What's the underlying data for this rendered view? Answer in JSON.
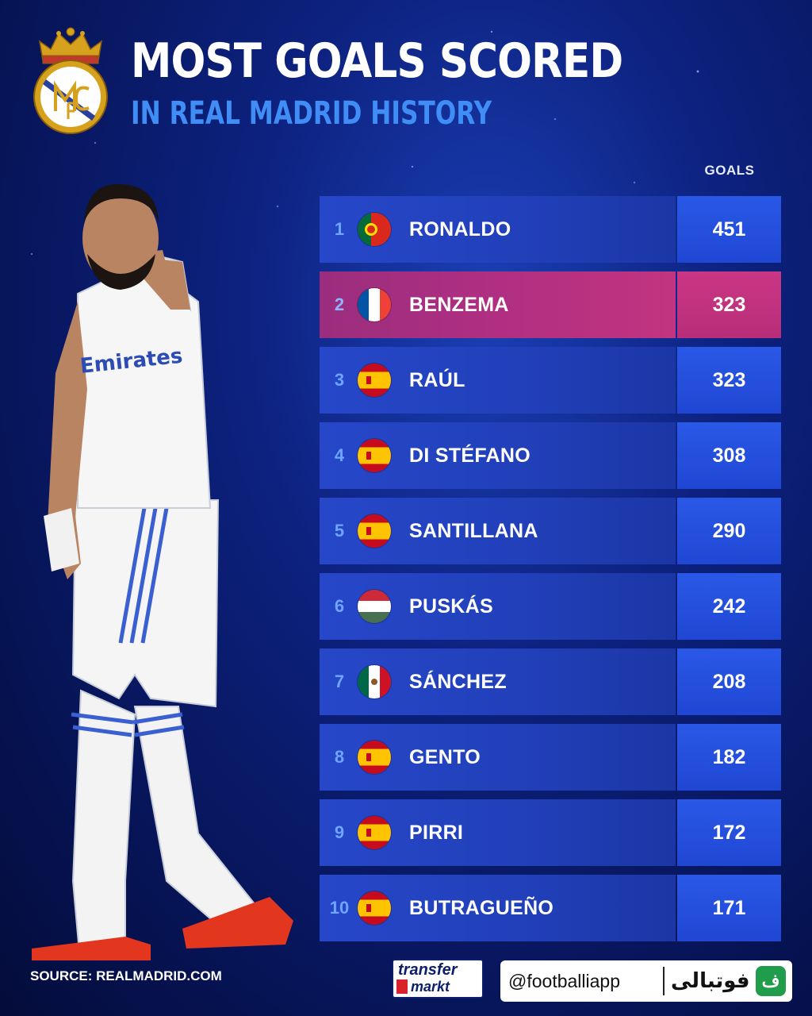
{
  "header": {
    "title": "MOST GOALS SCORED",
    "subtitle": "IN REAL MADRID HISTORY",
    "goals_column_label": "GOALS"
  },
  "rows": [
    {
      "rank": "1",
      "name": "RONALDO",
      "goals": "451",
      "flag": "portugal-flag",
      "highlight": false
    },
    {
      "rank": "2",
      "name": "BENZEMA",
      "goals": "323",
      "flag": "france-flag",
      "highlight": true
    },
    {
      "rank": "3",
      "name": "RAÚL",
      "goals": "323",
      "flag": "spain-flag",
      "highlight": false
    },
    {
      "rank": "4",
      "name": "DI STÉFANO",
      "goals": "308",
      "flag": "spain-flag",
      "highlight": false
    },
    {
      "rank": "5",
      "name": "SANTILLANA",
      "goals": "290",
      "flag": "spain-flag",
      "highlight": false
    },
    {
      "rank": "6",
      "name": "PUSKÁS",
      "goals": "242",
      "flag": "hungary-flag",
      "highlight": false
    },
    {
      "rank": "7",
      "name": "SÁNCHEZ",
      "goals": "208",
      "flag": "mexico-flag",
      "highlight": false
    },
    {
      "rank": "8",
      "name": "GENTO",
      "goals": "182",
      "flag": "spain-flag",
      "highlight": false
    },
    {
      "rank": "9",
      "name": "PIRRI",
      "goals": "172",
      "flag": "spain-flag",
      "highlight": false
    },
    {
      "rank": "10",
      "name": "BUTRAGUEÑO",
      "goals": "171",
      "flag": "spain-flag",
      "highlight": false
    }
  ],
  "footer": {
    "source": "SOURCE: REALMADRID.COM",
    "tm_line1": "transfer",
    "tm_line2": "markt",
    "handle": "@footballiapp",
    "brand": "فوتبالی",
    "brand_logo": "ف"
  },
  "colors": {
    "accent_blue": "#3f8df5",
    "highlight_pink": "#b02f82",
    "row_blue": "#2647c9",
    "goals_blue": "#1f47d4"
  }
}
